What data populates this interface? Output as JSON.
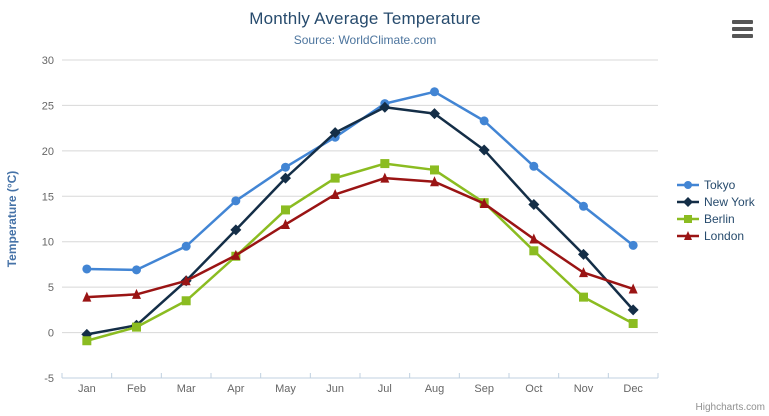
{
  "chart_data": {
    "type": "line",
    "title": "Monthly Average Temperature",
    "subtitle": "Source: WorldClimate.com",
    "xlabel": "",
    "ylabel": "Temperature (°C)",
    "ylim": [
      -5,
      30
    ],
    "ytick_step": 5,
    "grid": true,
    "legend_position": "right",
    "categories": [
      "Jan",
      "Feb",
      "Mar",
      "Apr",
      "May",
      "Jun",
      "Jul",
      "Aug",
      "Sep",
      "Oct",
      "Nov",
      "Dec"
    ],
    "series": [
      {
        "name": "Tokyo",
        "color": "#4285d4",
        "marker": "circle",
        "values": [
          7.0,
          6.9,
          9.5,
          14.5,
          18.2,
          21.5,
          25.2,
          26.5,
          23.3,
          18.3,
          13.9,
          9.6
        ]
      },
      {
        "name": "New York",
        "color": "#142e47",
        "marker": "diamond",
        "values": [
          -0.2,
          0.8,
          5.7,
          11.3,
          17.0,
          22.0,
          24.8,
          24.1,
          20.1,
          14.1,
          8.6,
          2.5
        ]
      },
      {
        "name": "Berlin",
        "color": "#8bbc21",
        "marker": "square",
        "values": [
          -0.9,
          0.6,
          3.5,
          8.4,
          13.5,
          17.0,
          18.6,
          17.9,
          14.3,
          9.0,
          3.9,
          1.0
        ]
      },
      {
        "name": "London",
        "color": "#9a1414",
        "marker": "triangle",
        "values": [
          3.9,
          4.2,
          5.7,
          8.5,
          11.9,
          15.2,
          17.0,
          16.6,
          14.2,
          10.3,
          6.6,
          4.8
        ]
      }
    ]
  },
  "colors": {
    "title": "#274b6d",
    "subtitle": "#4d759e",
    "axis_title": "#4572a7",
    "tick_label": "#666666",
    "grid_line": "#d8d8d8",
    "axis_line": "#c0d0e0",
    "legend_text": "#274b6d",
    "credits_text": "#909090",
    "menu_icon": "#565656"
  },
  "export_menu": {
    "icon": "hamburger-icon"
  },
  "credits": {
    "label": "Highcharts.com"
  }
}
